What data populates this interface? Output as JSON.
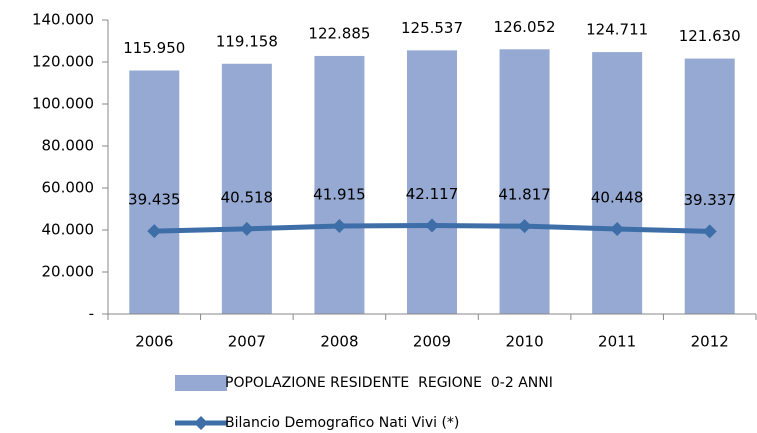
{
  "chart_data": {
    "type": "bar",
    "categories": [
      "2006",
      "2007",
      "2008",
      "2009",
      "2010",
      "2011",
      "2012"
    ],
    "series": [
      {
        "name": "POPOLAZIONE RESIDENTE  REGIONE  0-2 ANNI",
        "type": "bar",
        "color": "#95a9d2",
        "values": [
          115950,
          119158,
          122885,
          125537,
          126052,
          124711,
          121630
        ],
        "value_labels": [
          "115.950",
          "119.158",
          "122.885",
          "125.537",
          "126.052",
          "124.711",
          "121.630"
        ]
      },
      {
        "name": "Bilancio Demografico Nati Vivi (*)",
        "type": "line",
        "color": "#3d6ea8",
        "values": [
          39435,
          40518,
          41915,
          42117,
          41817,
          40448,
          39337
        ],
        "value_labels": [
          "39.435",
          "40.518",
          "41.915",
          "42.117",
          "41.817",
          "40.448",
          "39.337"
        ]
      }
    ],
    "ylim": [
      0,
      140000
    ],
    "yticks": [
      {
        "value": 0,
        "label": "-"
      },
      {
        "value": 20000,
        "label": "20.000"
      },
      {
        "value": 40000,
        "label": "40.000"
      },
      {
        "value": 60000,
        "label": "60.000"
      },
      {
        "value": 80000,
        "label": "80.000"
      },
      {
        "value": 100000,
        "label": "100.000"
      },
      {
        "value": 120000,
        "label": "120.000"
      },
      {
        "value": 140000,
        "label": "140.000"
      }
    ],
    "grid": false,
    "legend": "bottom"
  }
}
